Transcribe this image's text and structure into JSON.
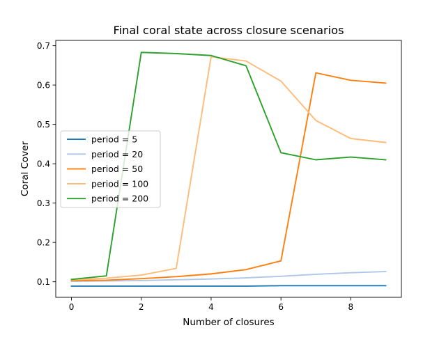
{
  "chart_data": {
    "type": "line",
    "title": "Final coral state across closure scenarios",
    "xlabel": "Number of closures",
    "ylabel": "Coral Cover",
    "xlim": [
      -0.45,
      9.45
    ],
    "ylim": [
      0.0605,
      0.7135
    ],
    "xticks": [
      0,
      2,
      4,
      6,
      8
    ],
    "xtick_labels": [
      "0",
      "2",
      "4",
      "6",
      "8"
    ],
    "yticks": [
      0.1,
      0.2,
      0.3,
      0.4,
      0.5,
      0.6,
      0.7
    ],
    "ytick_labels": [
      "0.1",
      "0.2",
      "0.3",
      "0.4",
      "0.5",
      "0.6",
      "0.7"
    ],
    "grid": false,
    "legend_position": "center-left",
    "x": [
      0,
      1,
      2,
      3,
      4,
      5,
      6,
      7,
      8,
      9
    ],
    "series": [
      {
        "name": "period = 5",
        "color": "#1f77b4",
        "values": [
          0.089,
          0.089,
          0.089,
          0.089,
          0.089,
          0.089,
          0.09,
          0.09,
          0.09,
          0.09
        ]
      },
      {
        "name": "period = 20",
        "color": "#aec7e8",
        "values": [
          0.101,
          0.102,
          0.103,
          0.105,
          0.107,
          0.11,
          0.114,
          0.119,
          0.123,
          0.126
        ]
      },
      {
        "name": "period = 50",
        "color": "#ff7f0e",
        "values": [
          0.103,
          0.104,
          0.108,
          0.113,
          0.12,
          0.131,
          0.153,
          0.631,
          0.612,
          0.605
        ]
      },
      {
        "name": "period = 100",
        "color": "#ffbb78",
        "values": [
          0.105,
          0.109,
          0.117,
          0.134,
          0.672,
          0.661,
          0.61,
          0.51,
          0.464,
          0.454
        ]
      },
      {
        "name": "period = 200",
        "color": "#2ca02c",
        "values": [
          0.106,
          0.115,
          0.683,
          0.68,
          0.675,
          0.649,
          0.428,
          0.41,
          0.417,
          0.41
        ]
      }
    ]
  }
}
